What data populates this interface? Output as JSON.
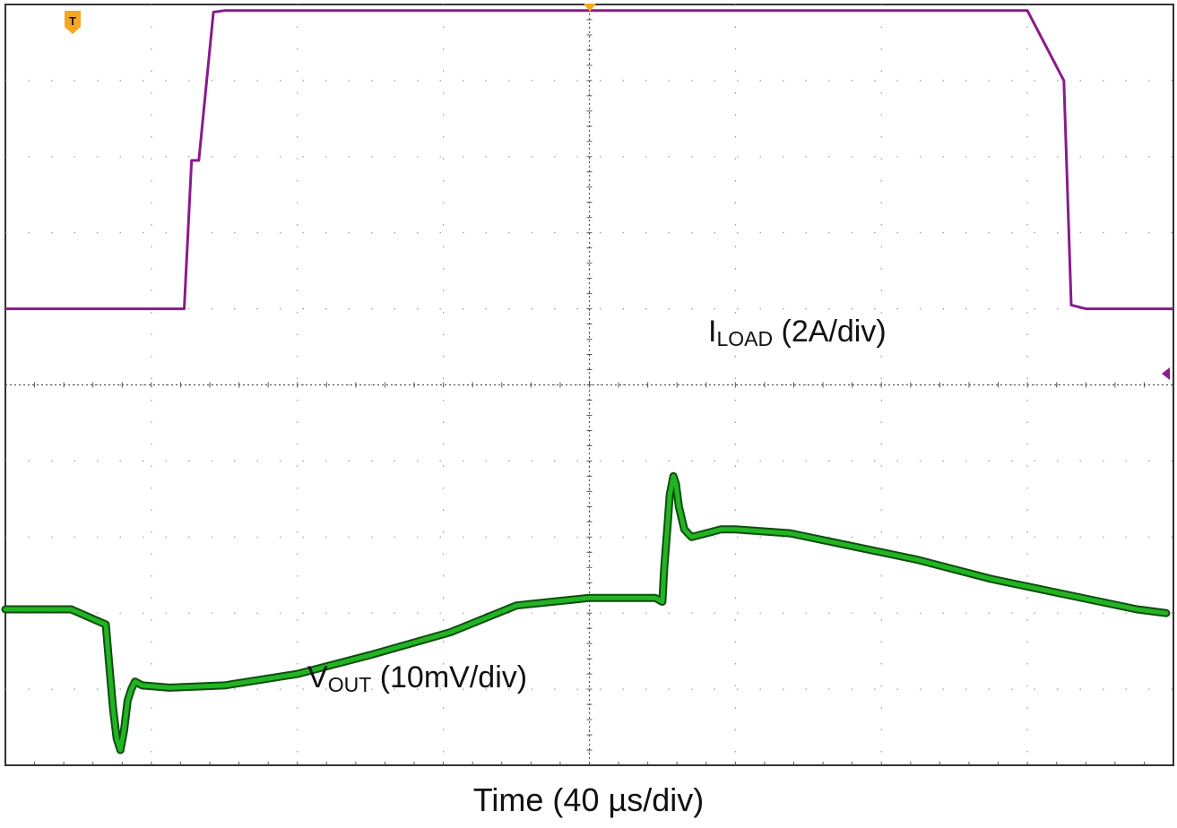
{
  "chart_data": {
    "type": "line",
    "xlabel": "Time (40 µs/div)",
    "x_unit": "µs",
    "x_per_div": 40,
    "xlim": [
      0,
      320
    ],
    "divisions": {
      "x": 8,
      "y": 10
    },
    "grid": true,
    "trigger_marker": "T",
    "series": [
      {
        "name_main": "I",
        "name_sub": "LOAD",
        "name_suffix": " (2A/div)",
        "color": "#8b1a8b",
        "y_unit": "div",
        "x": [
          0,
          49,
          51,
          53,
          57,
          60,
          200,
          280,
          290,
          292,
          296,
          300,
          320
        ],
        "y": [
          6.0,
          6.0,
          7.95,
          7.95,
          9.9,
          9.92,
          9.92,
          9.92,
          9.0,
          6.05,
          6.0,
          6.0,
          6.0
        ]
      },
      {
        "name_main": "V",
        "name_sub": "OUT",
        "name_suffix": " (10mV/div)",
        "color": "#22b422",
        "y_unit": "div",
        "x": [
          0,
          18,
          27.5,
          28.5,
          29.5,
          30.5,
          31.5,
          32.5,
          33.5,
          34.5,
          35.5,
          37.5,
          45,
          60,
          80,
          100,
          122,
          140,
          160,
          178,
          180,
          180.5,
          181.5,
          182,
          183,
          183.7,
          184.5,
          186,
          188,
          192,
          196,
          200,
          215,
          230,
          250,
          270,
          290,
          310,
          318
        ],
        "y": [
          2.05,
          2.05,
          1.85,
          1.3,
          0.75,
          0.35,
          0.2,
          0.45,
          0.85,
          1.0,
          1.1,
          1.05,
          1.02,
          1.05,
          1.2,
          1.45,
          1.75,
          2.1,
          2.2,
          2.2,
          2.15,
          2.6,
          3.2,
          3.55,
          3.8,
          3.7,
          3.4,
          3.1,
          3.0,
          3.05,
          3.1,
          3.1,
          3.05,
          2.9,
          2.7,
          2.45,
          2.25,
          2.05,
          2.0
        ]
      }
    ]
  }
}
